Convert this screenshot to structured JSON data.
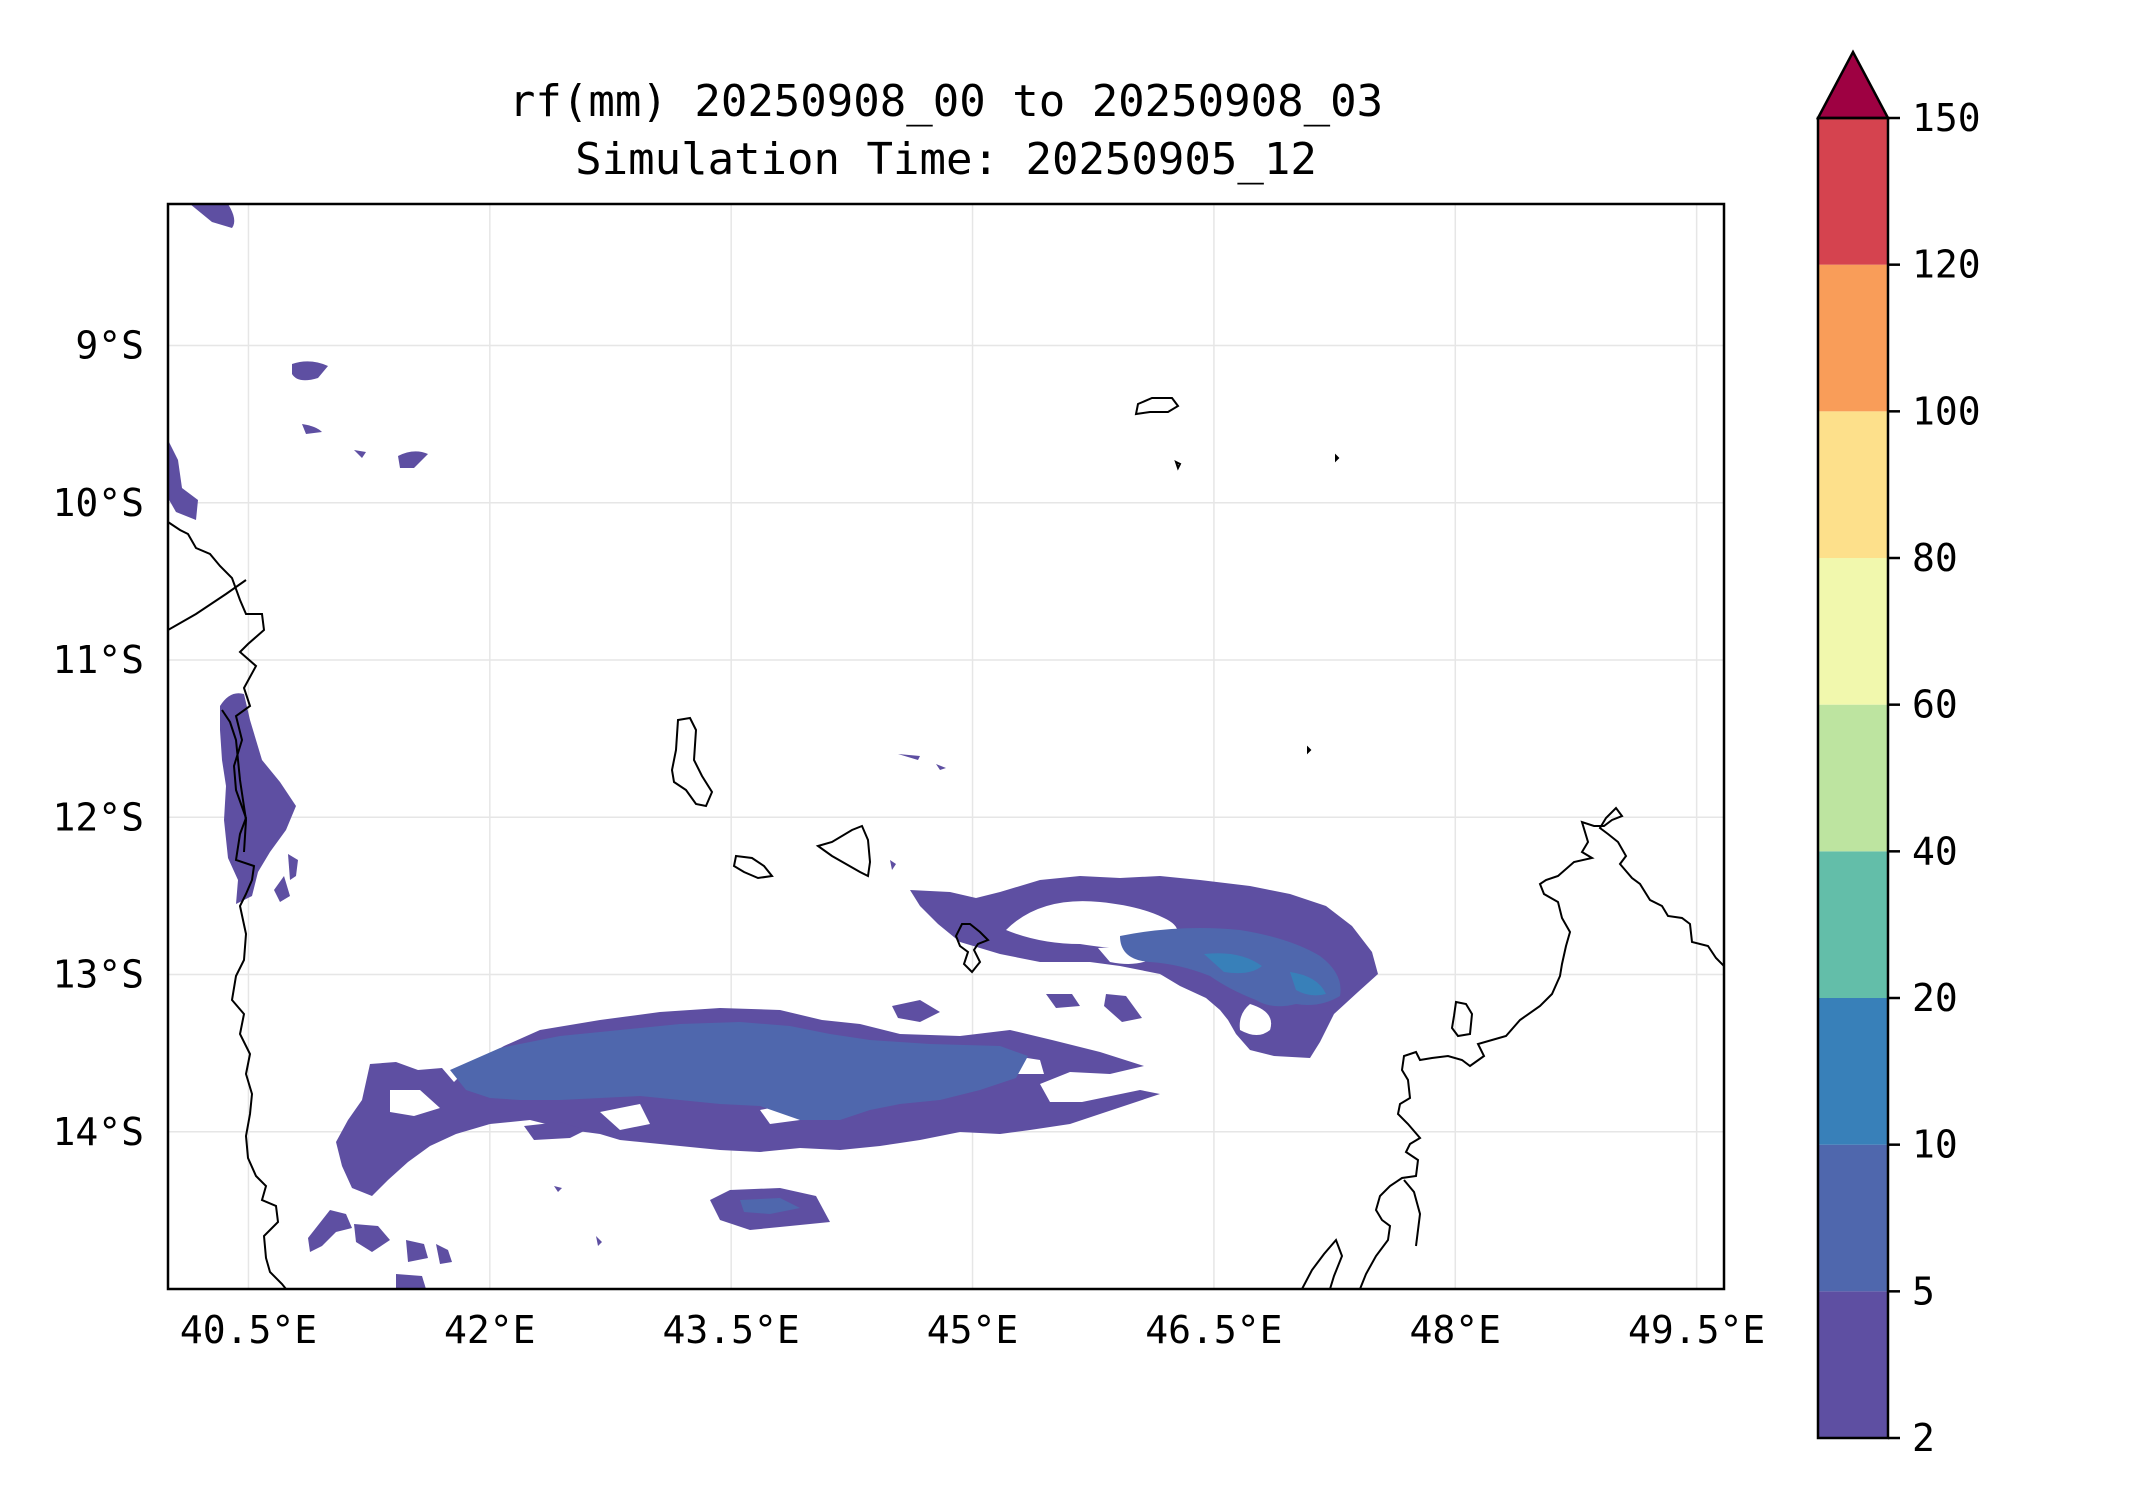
{
  "title": {
    "line1": "rf(mm) 20250908_00 to 20250908_03",
    "line2": "Simulation Time: 20250905_12"
  },
  "map": {
    "lon_range": [
      40.0,
      49.67
    ],
    "lat_range": [
      -15.0,
      -8.1
    ],
    "x_ticks": [
      {
        "value": 40.5,
        "label": "40.5°E"
      },
      {
        "value": 42.0,
        "label": "42°E"
      },
      {
        "value": 43.5,
        "label": "43.5°E"
      },
      {
        "value": 45.0,
        "label": "45°E"
      },
      {
        "value": 46.5,
        "label": "46.5°E"
      },
      {
        "value": 48.0,
        "label": "48°E"
      },
      {
        "value": 49.5,
        "label": "49.5°E"
      }
    ],
    "y_ticks": [
      {
        "value": -9,
        "label": "9°S"
      },
      {
        "value": -10,
        "label": "10°S"
      },
      {
        "value": -11,
        "label": "11°S"
      },
      {
        "value": -12,
        "label": "12°S"
      },
      {
        "value": -13,
        "label": "13°S"
      },
      {
        "value": -14,
        "label": "14°S"
      }
    ],
    "gridlines": true
  },
  "colorbar": {
    "extend": "max",
    "extend_color": "#9e0142",
    "levels": [
      {
        "value": 2,
        "label": "2"
      },
      {
        "value": 5,
        "label": "5"
      },
      {
        "value": 10,
        "label": "10"
      },
      {
        "value": 20,
        "label": "20"
      },
      {
        "value": 40,
        "label": "40"
      },
      {
        "value": 60,
        "label": "60"
      },
      {
        "value": 80,
        "label": "80"
      },
      {
        "value": 100,
        "label": "100"
      },
      {
        "value": 120,
        "label": "120"
      },
      {
        "value": 150,
        "label": "150"
      }
    ],
    "colors": [
      "#5e4fa2",
      "#4f67ad",
      "#3880b9",
      "#63bea9",
      "#bde4a0",
      "#f1f8ad",
      "#fde08b",
      "#f99d59",
      "#d5434f"
    ]
  }
}
